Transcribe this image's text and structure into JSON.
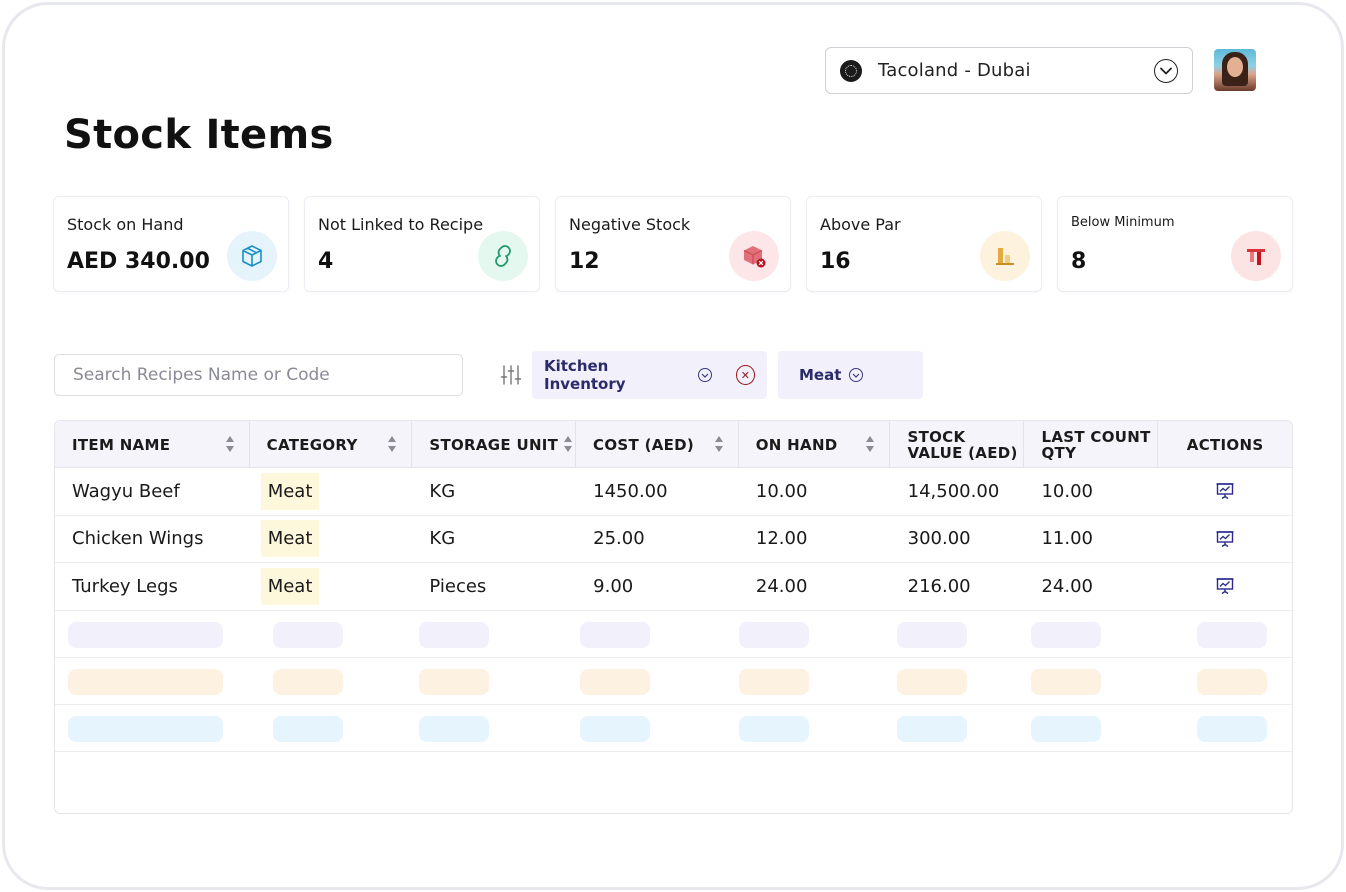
{
  "header": {
    "store_name": "Tacoland - Dubai",
    "page_title": "Stock Items"
  },
  "cards": [
    {
      "label": "Stock on Hand",
      "value": "AED 340.00",
      "icon": "box-icon",
      "color": "#1b8fc4",
      "bg": "#e5f4fb"
    },
    {
      "label": "Not Linked to Recipe",
      "value": "4",
      "icon": "link-icon",
      "color": "#1f9b6a",
      "bg": "#e5f8ef"
    },
    {
      "label": "Negative Stock",
      "value": "12",
      "icon": "negative-box-icon",
      "color": "#d9505a",
      "bg": "#fde6e8"
    },
    {
      "label": "Above Par",
      "value": "16",
      "icon": "bar-chart-icon",
      "color": "#d8a23a",
      "bg": "#fdf2de"
    },
    {
      "label": "Below Minimum",
      "value": "8",
      "icon": "below-minimum-icon",
      "color": "#d8323b",
      "bg": "#fde4e4"
    }
  ],
  "filters": {
    "search_placeholder": "Search Recipes Name or Code",
    "chip_inventory": "Kitchen Inventory",
    "chip_category": "Meat"
  },
  "table": {
    "headers": [
      "ITEM NAME",
      "CATEGORY",
      "STORAGE UNIT",
      "COST (AED)",
      "ON HAND",
      "STOCK VALUE (AED)",
      "LAST COUNT QTY",
      "ACTIONS"
    ],
    "rows": [
      {
        "name": "Wagyu Beef",
        "category": "Meat",
        "unit": "KG",
        "cost": "1450.00",
        "on_hand": "10.00",
        "value": "14,500.00",
        "last_count": "10.00"
      },
      {
        "name": "Chicken Wings",
        "category": "Meat",
        "unit": "KG",
        "cost": "25.00",
        "on_hand": "12.00",
        "value": "300.00",
        "last_count": "11.00"
      },
      {
        "name": "Turkey Legs",
        "category": "Meat",
        "unit": "Pieces",
        "cost": "9.00",
        "on_hand": "24.00",
        "value": "216.00",
        "last_count": "24.00"
      }
    ],
    "skeleton_colors": [
      "#f2f1fb",
      "#fdf1e2",
      "#e6f5fd"
    ]
  }
}
